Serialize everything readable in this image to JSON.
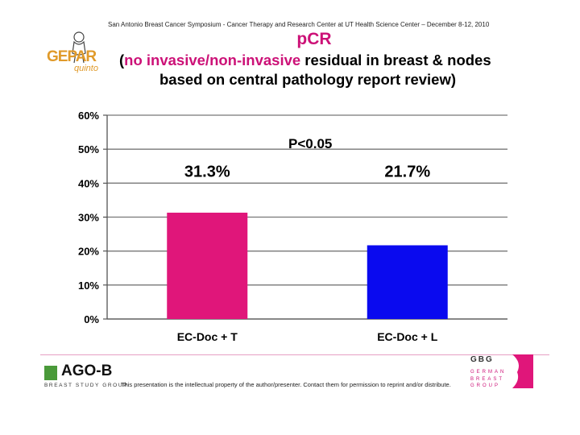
{
  "header": {
    "conference": "San Antonio Breast Cancer Symposium - Cancer Therapy and Research Center at UT Health Science Center – December 8-12, 2010",
    "logo_name": "GEPAR",
    "logo_sub": "quinto",
    "title_line1": "pCR",
    "title_line2_prefix": "(",
    "title_line2_highlight": "no invasive/non-invasive",
    "title_line2_suffix": " residual in breast & nodes",
    "title_line3": "based on central pathology report review)"
  },
  "chart_data": {
    "type": "bar",
    "title": "pCR",
    "categories": [
      "EC-Doc + T",
      "EC-Doc + L"
    ],
    "values": [
      31.3,
      21.7
    ],
    "value_labels": [
      "31.3%",
      "21.7%"
    ],
    "colors": [
      "#e0167a",
      "#0a0aef"
    ],
    "ylim": [
      0,
      60
    ],
    "yticks": [
      0,
      10,
      20,
      30,
      40,
      50,
      60
    ],
    "ytick_labels": [
      "0%",
      "10%",
      "20%",
      "30%",
      "40%",
      "50%",
      "60%"
    ],
    "grid": true,
    "annotation": "P<0.05",
    "xlabel": "",
    "ylabel": ""
  },
  "footer": {
    "ago_name": "AGO-B",
    "ago_sub": "BREAST STUDY GROUP",
    "disclaimer": "This presentation is the intellectual property of the author/presenter. Contact them for permission to reprint and/or distribute.",
    "gbg_name": "GBG",
    "gbg_lines": [
      "GERMAN",
      "BREAST",
      "GROUP"
    ]
  }
}
